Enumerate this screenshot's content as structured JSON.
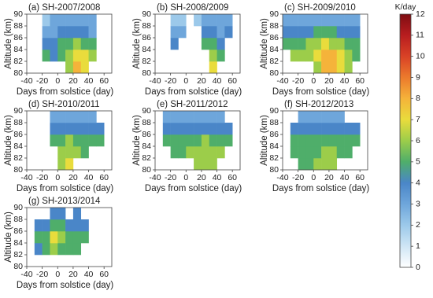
{
  "chart_data": [
    {
      "type": "heatmap",
      "title": "(a) SH-2007/2008",
      "xlabel": "Days from solstice (day)",
      "ylabel": "Altitude (km)",
      "xlim": [
        -40,
        70
      ],
      "xticks": [
        -40,
        -20,
        0,
        20,
        40,
        60
      ],
      "ylim": [
        80,
        90
      ],
      "yticks": [
        80,
        82,
        84,
        86,
        88,
        90
      ],
      "x": [
        -35,
        -25,
        -15,
        -5,
        5,
        15,
        25,
        35,
        45,
        55
      ],
      "y": [
        81,
        83,
        85,
        87,
        89
      ],
      "z": [
        [
          null,
          null,
          null,
          null,
          null,
          6,
          8,
          7,
          null,
          null
        ],
        [
          null,
          null,
          5,
          4,
          5,
          6,
          7,
          7,
          6,
          null
        ],
        [
          null,
          null,
          4,
          4,
          5,
          5,
          6,
          5,
          5,
          null
        ],
        [
          null,
          null,
          3,
          3,
          4,
          4,
          4,
          4,
          3,
          null
        ],
        [
          null,
          null,
          2,
          3,
          3,
          3,
          3,
          3,
          3,
          null
        ]
      ]
    },
    {
      "type": "heatmap",
      "title": "(b) SH-2008/2009",
      "xlabel": "Days from solstice (day)",
      "ylabel": "Altitude (km)",
      "xlim": [
        -40,
        70
      ],
      "xticks": [
        -40,
        -20,
        0,
        20,
        40,
        60
      ],
      "ylim": [
        80,
        90
      ],
      "yticks": [
        80,
        82,
        84,
        86,
        88,
        90
      ],
      "x": [
        -35,
        -25,
        -15,
        -5,
        5,
        15,
        25,
        35,
        45,
        55
      ],
      "y": [
        81,
        83,
        85,
        87,
        89
      ],
      "z": [
        [
          null,
          null,
          null,
          null,
          null,
          null,
          null,
          7,
          null,
          null
        ],
        [
          null,
          null,
          null,
          null,
          null,
          null,
          null,
          6,
          5,
          null
        ],
        [
          null,
          null,
          4,
          null,
          null,
          null,
          5,
          5,
          4,
          null
        ],
        [
          null,
          null,
          3,
          3,
          null,
          null,
          4,
          4,
          3,
          4
        ],
        [
          null,
          null,
          2,
          2,
          null,
          2,
          3,
          3,
          3,
          3
        ]
      ]
    },
    {
      "type": "heatmap",
      "title": "(c) SH-2009/2010",
      "xlabel": "Days from solstice (day)",
      "ylabel": "Altitude (km)",
      "xlim": [
        -40,
        70
      ],
      "xticks": [
        -40,
        -20,
        0,
        20,
        40,
        60
      ],
      "ylim": [
        80,
        90
      ],
      "yticks": [
        80,
        82,
        84,
        86,
        88,
        90
      ],
      "x": [
        -35,
        -25,
        -15,
        -5,
        5,
        15,
        25,
        35,
        45,
        55
      ],
      "y": [
        81,
        83,
        85,
        87,
        89
      ],
      "z": [
        [
          null,
          null,
          null,
          null,
          6,
          8,
          8,
          7,
          6,
          null
        ],
        [
          null,
          6,
          6,
          6,
          7,
          8,
          8,
          7,
          6,
          5
        ],
        [
          5,
          5,
          5,
          6,
          6,
          7,
          6,
          6,
          5,
          5
        ],
        [
          4,
          4,
          4,
          4,
          5,
          5,
          5,
          4,
          4,
          4
        ],
        [
          3,
          3,
          3,
          3,
          3,
          3,
          3,
          3,
          3,
          3
        ]
      ]
    },
    {
      "type": "heatmap",
      "title": "(d) SH-2010/2011",
      "xlabel": "Days from solstice (day)",
      "ylabel": "Altitude (km)",
      "xlim": [
        -40,
        70
      ],
      "xticks": [
        -40,
        -20,
        0,
        20,
        40,
        60
      ],
      "ylim": [
        80,
        90
      ],
      "yticks": [
        80,
        82,
        84,
        86,
        88,
        90
      ],
      "x": [
        -35,
        -25,
        -15,
        -5,
        5,
        15,
        25,
        35,
        45,
        55
      ],
      "y": [
        81,
        83,
        85,
        87,
        89
      ],
      "z": [
        [
          null,
          null,
          null,
          null,
          6,
          7,
          null,
          null,
          null,
          null
        ],
        [
          null,
          null,
          null,
          null,
          6,
          6,
          6,
          5,
          null,
          null
        ],
        [
          null,
          null,
          null,
          5,
          5,
          6,
          5,
          5,
          5,
          5
        ],
        [
          null,
          null,
          null,
          4,
          4,
          4,
          4,
          4,
          4,
          4
        ],
        [
          null,
          null,
          null,
          3,
          3,
          3,
          3,
          3,
          3,
          null
        ]
      ]
    },
    {
      "type": "heatmap",
      "title": "(e) SH-2011/2012",
      "xlabel": "Days from solstice (day)",
      "ylabel": "Altitude (km)",
      "xlim": [
        -40,
        70
      ],
      "xticks": [
        -40,
        -20,
        0,
        20,
        40,
        60
      ],
      "ylim": [
        80,
        90
      ],
      "yticks": [
        80,
        82,
        84,
        86,
        88,
        90
      ],
      "x": [
        -35,
        -25,
        -15,
        -5,
        5,
        15,
        25,
        35,
        45,
        55
      ],
      "y": [
        81,
        83,
        85,
        87,
        89
      ],
      "z": [
        [
          null,
          null,
          null,
          null,
          null,
          6,
          6,
          6,
          null,
          null
        ],
        [
          null,
          null,
          5,
          5,
          6,
          6,
          6,
          6,
          6,
          null
        ],
        [
          null,
          5,
          5,
          5,
          5,
          5,
          6,
          5,
          5,
          5
        ],
        [
          null,
          4,
          4,
          4,
          4,
          4,
          4,
          4,
          4,
          4
        ],
        [
          null,
          3,
          3,
          3,
          3,
          3,
          3,
          3,
          3,
          null
        ]
      ]
    },
    {
      "type": "heatmap",
      "title": "(f) SH-2012/2013",
      "xlabel": "Days from solstice (day)",
      "ylabel": "Altitude (km)",
      "xlim": [
        -40,
        70
      ],
      "xticks": [
        -40,
        -20,
        0,
        20,
        40,
        60
      ],
      "ylim": [
        80,
        90
      ],
      "yticks": [
        80,
        82,
        84,
        86,
        88,
        90
      ],
      "x": [
        -35,
        -25,
        -15,
        -5,
        5,
        15,
        25,
        35,
        45,
        55
      ],
      "y": [
        81,
        83,
        85,
        87,
        89
      ],
      "z": [
        [
          null,
          null,
          5,
          5,
          6,
          6,
          6,
          null,
          null,
          null
        ],
        [
          null,
          5,
          5,
          5,
          5,
          6,
          6,
          5,
          5,
          null
        ],
        [
          null,
          5,
          5,
          5,
          5,
          5,
          5,
          5,
          5,
          5
        ],
        [
          null,
          4,
          4,
          4,
          4,
          4,
          4,
          4,
          4,
          4
        ],
        [
          null,
          null,
          3,
          3,
          3,
          3,
          3,
          3,
          null,
          null
        ]
      ]
    },
    {
      "type": "heatmap",
      "title": "(g) SH-2013/2014",
      "xlabel": "Days from solstice (day)",
      "ylabel": "Altitude (km)",
      "xlim": [
        -40,
        70
      ],
      "xticks": [
        -40,
        -20,
        0,
        20,
        40,
        60
      ],
      "ylim": [
        80,
        90
      ],
      "yticks": [
        80,
        82,
        84,
        86,
        88,
        90
      ],
      "x": [
        -35,
        -25,
        -15,
        -5,
        5,
        15,
        25,
        35,
        45,
        55
      ],
      "y": [
        81,
        83,
        85,
        87,
        89
      ],
      "z": [
        [
          null,
          null,
          null,
          null,
          null,
          null,
          null,
          null,
          null,
          null
        ],
        [
          null,
          4,
          5,
          6,
          5,
          5,
          5,
          null,
          null,
          null
        ],
        [
          null,
          5,
          5,
          7,
          6,
          5,
          5,
          5,
          null,
          null
        ],
        [
          null,
          4,
          4,
          5,
          5,
          4,
          4,
          4,
          null,
          null
        ],
        [
          null,
          null,
          null,
          4,
          4,
          null,
          4,
          null,
          null,
          null
        ]
      ]
    }
  ],
  "colorbar": {
    "label": "K/day",
    "lim": [
      0,
      12
    ],
    "ticks": [
      0,
      1,
      2,
      3,
      4,
      5,
      6,
      7,
      8,
      9,
      10,
      11,
      12
    ],
    "colors": [
      "#ffffff",
      "#cfe6f5",
      "#9cc9ea",
      "#6ea6db",
      "#4a86c8",
      "#4fae6a",
      "#9ccd4a",
      "#e9dc3c",
      "#f5b33a",
      "#ec7a2c",
      "#d94226",
      "#b81d1f",
      "#7f0d12"
    ]
  }
}
